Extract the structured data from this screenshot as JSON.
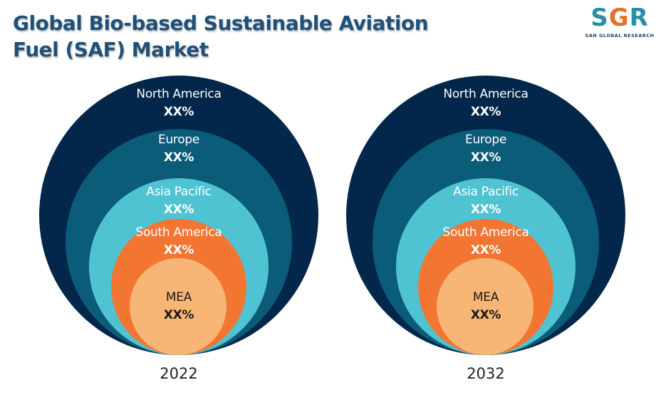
{
  "title": {
    "line1": "Global Bio-based Sustainable Aviation",
    "line2": "Fuel (SAF) Market"
  },
  "logo": {
    "mark_s": "S",
    "mark_g": "G",
    "mark_r": "R",
    "subtitle": "SAN GLOBAL RESEARCH"
  },
  "colors": {
    "north_america": "#02274a",
    "europe": "#0a5c78",
    "asia_pacific": "#4fc3d1",
    "south_america": "#f27632",
    "mea": "#f7b576",
    "title": "#1e5078"
  },
  "diagrams": [
    {
      "year": "2022",
      "regions": [
        {
          "name": "North America",
          "value": "XX%"
        },
        {
          "name": "Europe",
          "value": "XX%"
        },
        {
          "name": "Asia Pacific",
          "value": "XX%"
        },
        {
          "name": "South America",
          "value": "XX%"
        },
        {
          "name": "MEA",
          "value": "XX%"
        }
      ]
    },
    {
      "year": "2032",
      "regions": [
        {
          "name": "North America",
          "value": "XX%"
        },
        {
          "name": "Europe",
          "value": "XX%"
        },
        {
          "name": "Asia Pacific",
          "value": "XX%"
        },
        {
          "name": "South America",
          "value": "XX%"
        },
        {
          "name": "MEA",
          "value": "XX%"
        }
      ]
    }
  ]
}
